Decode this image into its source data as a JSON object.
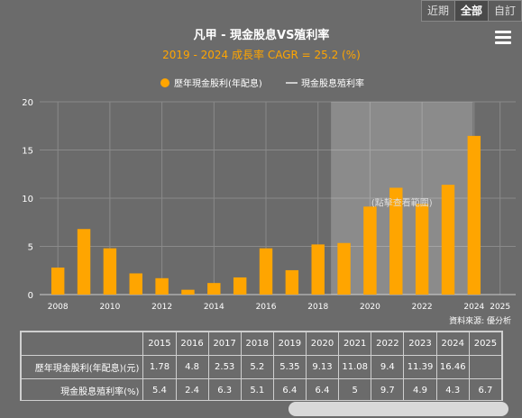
{
  "toolbar": {
    "tabs": [
      "近期",
      "全部",
      "自訂"
    ],
    "active": 1
  },
  "chart_data": {
    "type": "bar",
    "title": "凡甲 - 現金股息VS殖利率",
    "subtitle": "2019 - 2024 成長率 CAGR = 25.2 (%)",
    "legend": {
      "bar": "歷年現金股利(年配息)",
      "line": "現金股息殖利率",
      "position": "top-center"
    },
    "x": [
      2008,
      2009,
      2010,
      2011,
      2012,
      2013,
      2014,
      2015,
      2016,
      2017,
      2018,
      2019,
      2020,
      2021,
      2022,
      2023,
      2024
    ],
    "values": [
      2.8,
      6.8,
      4.8,
      2.2,
      1.7,
      0.5,
      1.2,
      1.78,
      4.8,
      2.53,
      5.2,
      5.35,
      9.13,
      11.08,
      9.4,
      11.39,
      16.46
    ],
    "x_ticks": [
      "2008",
      "2010",
      "2012",
      "2014",
      "2016",
      "2018",
      "2020",
      "2022",
      "2024",
      "2025"
    ],
    "ylim": [
      0,
      20
    ],
    "y_ticks": [
      "0",
      "5",
      "10",
      "15",
      "20"
    ],
    "highlight": {
      "from": 2019,
      "to": 2024,
      "label": "(點擊查看範圍)"
    },
    "bar_color": "#ffa500",
    "grid": true
  },
  "source": "資料來源: 優分析",
  "table": {
    "years": [
      "2015",
      "2016",
      "2017",
      "2018",
      "2019",
      "2020",
      "2021",
      "2022",
      "2023",
      "2024",
      "2025"
    ],
    "rows": [
      {
        "label": "歷年現金股利(年配息)(元)",
        "values": [
          "1.78",
          "4.8",
          "2.53",
          "5.2",
          "5.35",
          "9.13",
          "11.08",
          "9.4",
          "11.39",
          "16.46",
          ""
        ]
      },
      {
        "label": "現金股息殖利率(%)",
        "values": [
          "5.4",
          "2.4",
          "6.3",
          "5.1",
          "6.4",
          "6.4",
          "5",
          "9.7",
          "4.9",
          "4.3",
          "6.7"
        ]
      }
    ]
  }
}
